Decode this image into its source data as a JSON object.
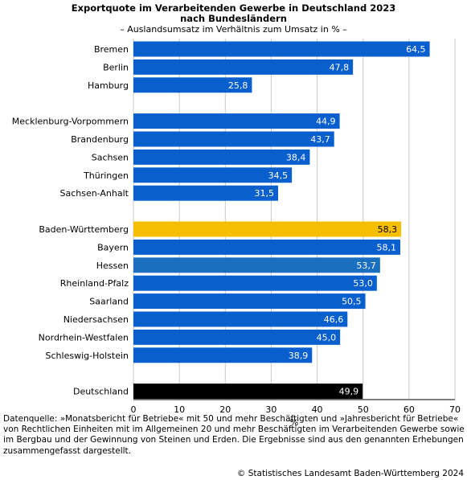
{
  "title_line1": "Exportquote im Verarbeitenden Gewerbe in Deutschland 2023",
  "title_line2": "nach Bundesländern",
  "subtitle": "– Auslandsumsatz im Verhältnis zum Umsatz in % –",
  "footnote": "Datenquelle: »Monatsbericht für Betriebe« mit 50 und mehr Beschäftigten und »Jahresbericht für Betriebe« von Rechtlichen Einheiten mit im Allgemeinen 20 und mehr Beschäftigten im Verarbeitenden Gewerbe sowie im Bergbau und der Gewinnung von Steinen und Erden. Die Ergebnisse sind aus den genannten Erhebungen zusammengefasst dargestellt.",
  "copyright": "© Statistisches Landesamt Baden-Württemberg 2024",
  "colors": {
    "default_bar": "#0a5fcf",
    "hessen_bar": "#1a6fc0",
    "highlight_bar": "#f5be00",
    "total_bar": "#000000",
    "grid": "#c8c8c8",
    "bar_label_light": "#ffffff",
    "bar_label_dark": "#000000"
  },
  "chart_data": {
    "type": "bar",
    "orientation": "horizontal",
    "xlabel": "%",
    "xlim": [
      0,
      70
    ],
    "xticks": [
      0,
      10,
      20,
      30,
      40,
      50,
      60,
      70
    ],
    "grid": true,
    "value_format": "comma decimal",
    "categories": [
      "Bremen",
      "Berlin",
      "Hamburg",
      "Mecklenburg-Vorpommern",
      "Brandenburg",
      "Sachsen",
      "Thüringen",
      "Sachsen-Anhalt",
      "Baden-Württemberg",
      "Bayern",
      "Hessen",
      "Rheinland-Pfalz",
      "Saarland",
      "Niedersachsen",
      "Nordrhein-Westfalen",
      "Schleswig-Holstein",
      "Deutschland"
    ],
    "values": [
      64.5,
      47.8,
      25.8,
      44.9,
      43.7,
      38.4,
      34.5,
      31.5,
      58.3,
      58.1,
      53.7,
      53.0,
      50.5,
      46.6,
      45.0,
      38.9,
      49.9
    ],
    "value_labels": [
      "64,5",
      "47,8",
      "25,8",
      "44,9",
      "43,7",
      "38,4",
      "34,5",
      "31,5",
      "58,3",
      "58,1",
      "53,7",
      "53,0",
      "50,5",
      "46,6",
      "45,0",
      "38,9",
      "49,9"
    ],
    "groups": [
      {
        "categories": [
          "Bremen",
          "Berlin",
          "Hamburg"
        ]
      },
      {
        "categories": [
          "Mecklenburg-Vorpommern",
          "Brandenburg",
          "Sachsen",
          "Thüringen",
          "Sachsen-Anhalt"
        ]
      },
      {
        "categories": [
          "Baden-Württemberg",
          "Bayern",
          "Hessen",
          "Rheinland-Pfalz",
          "Saarland",
          "Niedersachsen",
          "Nordrhein-Westfalen",
          "Schleswig-Holstein"
        ]
      },
      {
        "categories": [
          "Deutschland"
        ]
      }
    ],
    "highlight": {
      "Baden-Württemberg": "highlight_bar",
      "Hessen": "hessen_bar",
      "Deutschland": "total_bar"
    }
  }
}
